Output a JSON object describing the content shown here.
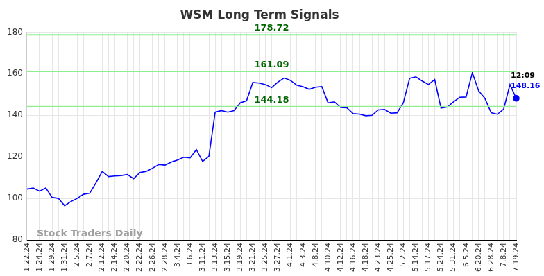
{
  "chart_data": {
    "type": "line",
    "title": "WSM Long Term Signals",
    "watermark": "Stock Traders Daily",
    "categories": [
      "1.22.24",
      null,
      "1.24.24",
      null,
      "1.29.24",
      null,
      "1.31.24",
      null,
      "2.5.24",
      null,
      "2.7.24",
      null,
      "2.12.24",
      null,
      "2.14.24",
      null,
      "2.20.24",
      null,
      "2.22.24",
      null,
      "2.26.24",
      null,
      "2.28.24",
      null,
      "3.4.24",
      null,
      "3.6.24",
      null,
      "3.11.24",
      null,
      "3.13.24",
      null,
      "3.15.24",
      null,
      "3.19.24",
      null,
      "3.21.24",
      null,
      "3.25.24",
      null,
      "3.27.24",
      null,
      "4.1.24",
      null,
      "4.3.24",
      null,
      "4.8.24",
      null,
      "4.10.24",
      null,
      "4.12.24",
      null,
      "4.16.24",
      null,
      "4.18.24",
      null,
      "4.23.24",
      null,
      "4.25.24",
      null,
      "5.2.24",
      null,
      "5.14.24",
      null,
      "5.17.24",
      null,
      "5.24.24",
      null,
      "5.31.24",
      null,
      "6.5.24",
      null,
      "6.20.24",
      null,
      "6.28.24",
      null,
      "7.8.24",
      null,
      "7.19.24"
    ],
    "values": [
      104.5,
      105,
      103.5,
      105,
      100.5,
      100,
      96.5,
      98.5,
      100,
      102,
      102.5,
      107.5,
      113,
      110.5,
      110.8,
      111,
      111.5,
      109.5,
      112.5,
      113,
      114.5,
      116.3,
      116,
      117.5,
      118.5,
      119.8,
      119.5,
      123.5,
      117.8,
      120.3,
      141.5,
      142.3,
      141.5,
      142.2,
      146,
      147,
      155.8,
      155.5,
      154.8,
      153.3,
      156,
      158,
      156.8,
      154.5,
      153.8,
      152.5,
      153.5,
      153.8,
      146,
      146.5,
      143.8,
      143.6,
      140.8,
      140.6,
      139.8,
      140,
      142.6,
      142.8,
      141,
      141.2,
      146,
      157.8,
      158.5,
      156.5,
      154.8,
      157.2,
      143.5,
      144,
      146.5,
      148.7,
      148.8,
      160.5,
      151.8,
      148.2,
      141.2,
      140.5,
      143,
      154.8,
      148.16
    ],
    "color": "#0000ff",
    "signal_lines": [
      {
        "value": 178.72,
        "label": "178.72"
      },
      {
        "value": 161.09,
        "label": "161.09"
      },
      {
        "value": 144.18,
        "label": "144.18"
      }
    ],
    "signal_line_color": "#90ee90",
    "signal_label_color": "#006400",
    "last_point": {
      "time": "12:09",
      "label": "148.16"
    },
    "ylim": [
      80,
      180
    ],
    "yticks": [
      80,
      100,
      120,
      140,
      160,
      180
    ],
    "grid": true
  }
}
